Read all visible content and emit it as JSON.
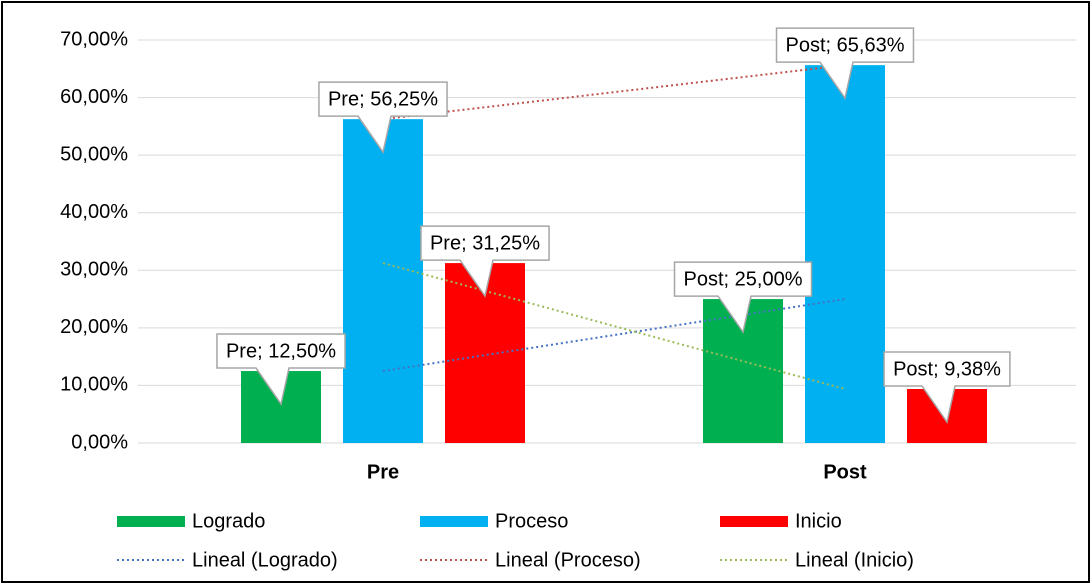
{
  "chart_data": {
    "type": "bar",
    "categories": [
      "Pre",
      "Post"
    ],
    "series": [
      {
        "name": "Logrado",
        "color": "#00b050",
        "values": [
          12.5,
          25
        ],
        "value_labels": [
          "Pre; 12,50%",
          "Post; 25,00%"
        ],
        "trendline": {
          "name": "Lineal (Logrado)",
          "color": "#4472c4"
        }
      },
      {
        "name": "Proceso",
        "color": "#00b0f0",
        "values": [
          56.25,
          65.63
        ],
        "value_labels": [
          "Pre; 56,25%",
          "Post; 65,63%"
        ],
        "trendline": {
          "name": "Lineal (Proceso)",
          "color": "#c0504d"
        }
      },
      {
        "name": "Inicio",
        "color": "#ff0000",
        "values": [
          31.25,
          9.38
        ],
        "value_labels": [
          "Pre; 31,25%",
          "Post; 9,38%"
        ],
        "trendline": {
          "name": "Lineal (Inicio)",
          "color": "#9bbb59"
        }
      }
    ],
    "ylim": [
      0,
      70
    ],
    "yticks": [
      {
        "value": 0,
        "label": "0,00%"
      },
      {
        "value": 10,
        "label": "10,00%"
      },
      {
        "value": 20,
        "label": "20,00%"
      },
      {
        "value": 30,
        "label": "30,00%"
      },
      {
        "value": 40,
        "label": "40,00%"
      },
      {
        "value": 50,
        "label": "50,00%"
      },
      {
        "value": 60,
        "label": "60,00%"
      },
      {
        "value": 70,
        "label": "70,00%"
      }
    ],
    "grid": true,
    "legend": "bottom"
  }
}
